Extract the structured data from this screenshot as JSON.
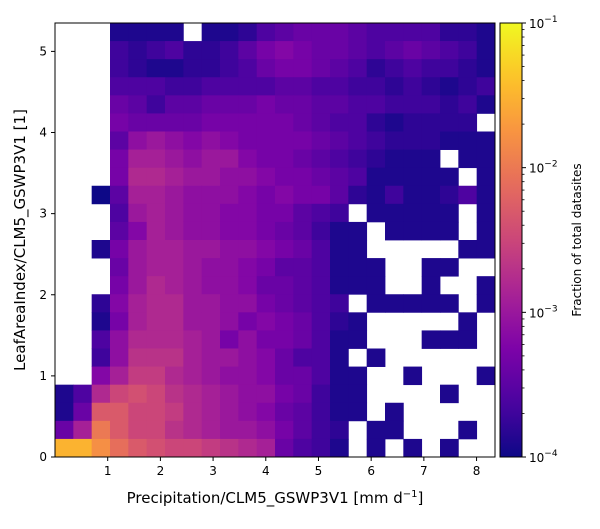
{
  "chart_data": {
    "type": "heatmap",
    "xlabel": "Precipitation/CLM5_GSWP3V1 [mm d",
    "xlabel_superscript": "−1",
    "xlabel_suffix": "]",
    "ylabel": "LeafAreaIndex/CLM5_GSWP3V1 [1]",
    "xlim": [
      0,
      8.35
    ],
    "ylim": [
      0,
      5.35
    ],
    "x_ticks": [
      1,
      2,
      3,
      4,
      5,
      6,
      7,
      8
    ],
    "x_tick_labels": [
      "1",
      "2",
      "3",
      "4",
      "5",
      "6",
      "7",
      "8"
    ],
    "y_ticks": [
      0,
      1,
      2,
      3,
      4,
      5
    ],
    "y_tick_labels": [
      "0",
      "1",
      "2",
      "3",
      "4",
      "5"
    ],
    "bins_x": 24,
    "bins_y": 24,
    "colormap": "plasma",
    "colorbar": {
      "label": "Fraction of total datasites",
      "scale": "log",
      "min": 0.0001,
      "max": 0.1,
      "ticks": [
        {
          "base": "10",
          "exp": "−1",
          "value": 0.1
        },
        {
          "base": "10",
          "exp": "−2",
          "value": 0.01
        },
        {
          "base": "10",
          "exp": "−3",
          "value": 0.001
        },
        {
          "base": "10",
          "exp": "−4",
          "value": 0.0001
        }
      ]
    },
    "grid_note": "rows listed from top (highest LAI bin) to bottom (LAI 0); values are log10 of fraction; null = empty bin",
    "log10_values": [
      [
        null,
        null,
        null,
        -3.9,
        -3.9,
        -3.9,
        -3.9,
        null,
        -3.9,
        -3.9,
        -3.8,
        -3.6,
        -3.5,
        -3.4,
        -3.4,
        -3.4,
        -3.5,
        -3.6,
        -3.6,
        -3.6,
        -3.6,
        -3.8,
        -3.8,
        -3.9
      ],
      [
        null,
        null,
        null,
        -3.7,
        -3.8,
        -3.7,
        -3.6,
        -3.8,
        -3.8,
        -3.7,
        -3.5,
        -3.3,
        -3.2,
        -3.3,
        -3.4,
        -3.4,
        -3.5,
        -3.6,
        -3.5,
        -3.4,
        -3.5,
        -3.6,
        -3.7,
        -3.9
      ],
      [
        null,
        null,
        null,
        -3.7,
        -3.8,
        -3.9,
        -3.9,
        -3.8,
        -3.8,
        -3.7,
        -3.6,
        -3.4,
        -3.3,
        -3.3,
        -3.4,
        -3.5,
        -3.6,
        -3.8,
        -3.7,
        -3.6,
        -3.7,
        -3.7,
        -3.8,
        -3.9
      ],
      [
        null,
        null,
        null,
        -3.6,
        -3.6,
        -3.6,
        -3.7,
        -3.7,
        -3.6,
        -3.6,
        -3.6,
        -3.6,
        -3.5,
        -3.5,
        -3.6,
        -3.6,
        -3.7,
        -3.7,
        -3.8,
        -3.7,
        -3.8,
        -3.9,
        -3.8,
        -3.7
      ],
      [
        null,
        null,
        null,
        -3.4,
        -3.5,
        -3.7,
        -3.5,
        -3.5,
        -3.4,
        -3.4,
        -3.4,
        -3.3,
        -3.4,
        -3.4,
        -3.5,
        -3.5,
        -3.6,
        -3.6,
        -3.7,
        -3.7,
        -3.7,
        -3.8,
        -3.7,
        -3.9
      ],
      [
        null,
        null,
        null,
        -3.3,
        -3.4,
        -3.4,
        -3.4,
        -3.4,
        -3.3,
        -3.3,
        -3.3,
        -3.3,
        -3.3,
        -3.4,
        -3.5,
        -3.6,
        -3.6,
        -3.8,
        -3.9,
        -3.8,
        -3.8,
        -3.8,
        -3.8,
        null
      ],
      [
        null,
        null,
        null,
        -3.5,
        -3.1,
        -3.0,
        -3.1,
        -3.2,
        -3.1,
        -3.2,
        -3.3,
        -3.3,
        -3.3,
        -3.3,
        -3.4,
        -3.5,
        -3.6,
        -3.7,
        -3.8,
        -3.8,
        -3.8,
        -3.9,
        -3.9,
        -3.9
      ],
      [
        null,
        null,
        null,
        -3.3,
        -2.9,
        -2.9,
        -3.0,
        -3.1,
        -3.0,
        -3.0,
        -3.2,
        -3.3,
        -3.3,
        -3.4,
        -3.5,
        -3.6,
        -3.7,
        -3.8,
        -3.9,
        -3.9,
        -3.9,
        null,
        -3.9,
        -3.9
      ],
      [
        null,
        null,
        null,
        -3.3,
        -2.8,
        -2.8,
        -2.9,
        -3.0,
        -3.0,
        -3.1,
        -3.1,
        -3.2,
        -3.3,
        -3.3,
        -3.4,
        -3.5,
        -3.6,
        -3.9,
        -3.9,
        -3.9,
        -3.9,
        -3.9,
        null,
        -3.9
      ],
      [
        null,
        null,
        -4.0,
        -3.5,
        -2.9,
        -2.9,
        -3.0,
        -3.1,
        -3.1,
        -3.1,
        -3.2,
        -3.3,
        -3.2,
        -3.3,
        -3.3,
        -3.5,
        -3.8,
        -3.9,
        -3.7,
        -3.9,
        -3.9,
        -3.8,
        -3.6,
        -3.9
      ],
      [
        null,
        null,
        null,
        -3.6,
        -3.0,
        -2.9,
        -3.0,
        -3.1,
        -3.1,
        -3.2,
        -3.2,
        -3.3,
        -3.3,
        -3.5,
        -3.6,
        -3.7,
        null,
        -3.9,
        -3.9,
        -3.9,
        -3.9,
        -3.9,
        null,
        -3.9
      ],
      [
        null,
        null,
        null,
        -3.5,
        -3.2,
        -2.9,
        -3.0,
        -3.1,
        -3.1,
        -3.2,
        -3.2,
        -3.3,
        -3.4,
        -3.5,
        -3.7,
        -3.9,
        -3.9,
        null,
        -3.9,
        -3.9,
        -3.9,
        -3.9,
        null,
        -3.9
      ],
      [
        null,
        null,
        -3.9,
        -3.3,
        -3.0,
        -2.9,
        -2.9,
        -3.0,
        -3.0,
        -3.1,
        -3.1,
        -3.2,
        -3.3,
        -3.4,
        -3.6,
        -3.9,
        -3.9,
        null,
        null,
        null,
        null,
        null,
        -3.9,
        -3.9
      ],
      [
        null,
        null,
        null,
        -3.4,
        -3.0,
        -2.9,
        -2.9,
        -3.0,
        -3.1,
        -3.1,
        -3.2,
        -3.3,
        -3.5,
        -3.5,
        -3.6,
        -3.9,
        -3.9,
        -3.9,
        null,
        null,
        -3.9,
        -3.9,
        null,
        null
      ],
      [
        null,
        null,
        null,
        -3.3,
        -3.0,
        -2.8,
        -2.9,
        -3.0,
        -3.1,
        -3.1,
        -3.2,
        -3.4,
        -3.4,
        -3.5,
        -3.6,
        -3.9,
        -3.9,
        -3.9,
        null,
        null,
        -3.9,
        null,
        null,
        -3.9
      ],
      [
        null,
        null,
        -3.8,
        -3.2,
        -2.9,
        -2.8,
        -2.8,
        -3.0,
        -3.0,
        -3.1,
        -3.1,
        -3.3,
        -3.4,
        -3.5,
        -3.6,
        -3.7,
        null,
        -3.9,
        -3.9,
        -3.9,
        -3.9,
        -3.9,
        null,
        -3.9
      ],
      [
        null,
        null,
        -3.9,
        -3.3,
        -2.9,
        -2.8,
        -2.8,
        -3.0,
        -3.0,
        -3.1,
        -3.3,
        -3.2,
        -3.3,
        -3.4,
        -3.6,
        -3.8,
        -3.9,
        null,
        null,
        null,
        null,
        null,
        -3.9,
        null
      ],
      [
        null,
        null,
        -3.6,
        -3.1,
        -2.8,
        -2.8,
        -2.8,
        -2.9,
        -3.0,
        -3.3,
        -3.1,
        -3.3,
        -3.3,
        -3.4,
        -3.6,
        -3.9,
        -3.9,
        null,
        null,
        null,
        -3.9,
        -3.9,
        -3.9,
        null
      ],
      [
        null,
        null,
        -3.7,
        -3.1,
        -2.7,
        -2.7,
        -2.7,
        -2.9,
        -3.0,
        -3.0,
        -3.1,
        -3.2,
        -3.4,
        -3.6,
        -3.6,
        -3.9,
        null,
        -3.9,
        null,
        null,
        null,
        null,
        null,
        null
      ],
      [
        null,
        null,
        -3.2,
        -2.9,
        -2.6,
        -2.6,
        -2.8,
        -2.9,
        -3.0,
        -3.1,
        -3.1,
        -3.2,
        -3.4,
        -3.4,
        -3.6,
        -3.9,
        -3.9,
        null,
        null,
        -3.9,
        null,
        null,
        null,
        -3.9
      ],
      [
        -3.9,
        -3.6,
        -2.8,
        -2.5,
        -2.4,
        -2.5,
        -2.7,
        -2.8,
        -2.9,
        -3.0,
        -3.1,
        -3.1,
        -3.3,
        -3.4,
        -3.7,
        -3.9,
        -3.9,
        null,
        null,
        null,
        null,
        -3.9,
        null,
        null
      ],
      [
        -3.9,
        -3.4,
        -2.3,
        -2.3,
        -2.5,
        -2.5,
        -2.6,
        -2.8,
        -2.9,
        -3.0,
        -3.1,
        -3.2,
        -3.4,
        -3.5,
        -3.7,
        -3.9,
        -3.9,
        null,
        -3.9,
        null,
        null,
        null,
        null,
        null
      ],
      [
        -3.4,
        -2.9,
        -2.0,
        -2.3,
        -2.5,
        -2.5,
        -2.7,
        -2.8,
        -2.9,
        -3.0,
        -3.0,
        -3.1,
        -3.3,
        -3.5,
        -3.7,
        -3.8,
        null,
        -3.9,
        -3.9,
        null,
        null,
        null,
        -3.9,
        null
      ],
      [
        -1.5,
        -1.5,
        -1.8,
        -2.1,
        -2.3,
        -2.4,
        -2.5,
        -2.5,
        -2.6,
        -2.7,
        -2.8,
        -2.9,
        -3.4,
        -3.6,
        -3.7,
        -3.9,
        null,
        -3.9,
        null,
        -3.9,
        null,
        -3.9,
        null,
        null
      ]
    ]
  }
}
